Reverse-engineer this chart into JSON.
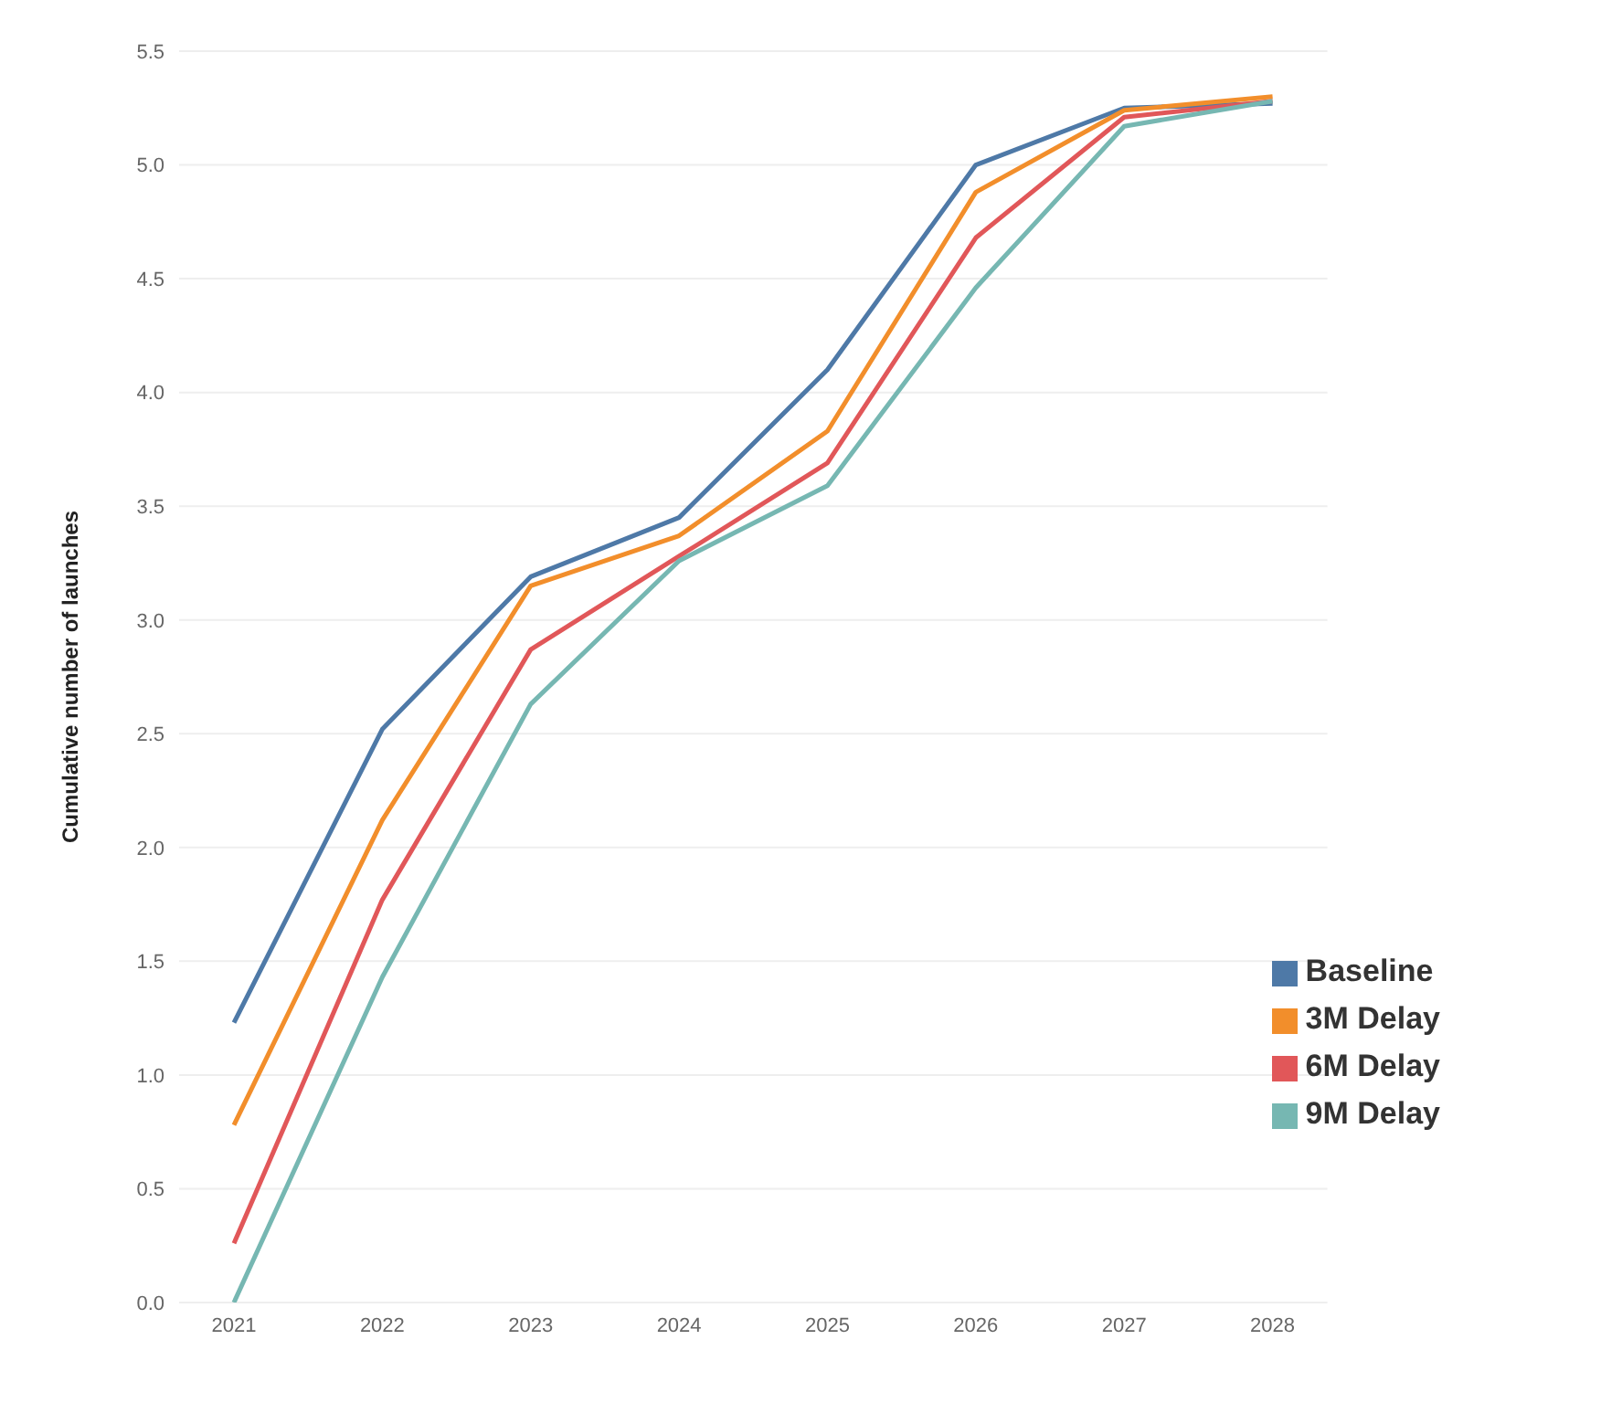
{
  "chart_data": {
    "type": "line",
    "ylabel": "Cumulative number of launches",
    "categories": [
      "2021",
      "2022",
      "2023",
      "2024",
      "2025",
      "2026",
      "2027",
      "2028"
    ],
    "series": [
      {
        "name": "Baseline",
        "color": "#4e79a7",
        "values": [
          1.23,
          2.52,
          3.19,
          3.45,
          4.1,
          5.0,
          5.25,
          5.27
        ]
      },
      {
        "name": "3M Delay",
        "color": "#f28e2b",
        "values": [
          0.78,
          2.12,
          3.15,
          3.37,
          3.83,
          4.88,
          5.24,
          5.3
        ]
      },
      {
        "name": "6M Delay",
        "color": "#e15759",
        "values": [
          0.26,
          1.77,
          2.87,
          3.28,
          3.69,
          4.68,
          5.21,
          5.28
        ]
      },
      {
        "name": "9M Delay",
        "color": "#76b7b2",
        "values": [
          0.0,
          1.43,
          2.63,
          3.26,
          3.59,
          4.46,
          5.17,
          5.28
        ]
      }
    ],
    "ylim": [
      0,
      5.5
    ],
    "yticks": [
      {
        "value": 0,
        "label": "0.0"
      },
      {
        "value": 0.5,
        "label": "0.5"
      },
      {
        "value": 1,
        "label": "1.0"
      },
      {
        "value": 1.5,
        "label": "1.5"
      },
      {
        "value": 2,
        "label": "2.0"
      },
      {
        "value": 2.5,
        "label": "2.5"
      },
      {
        "value": 3,
        "label": "3.0"
      },
      {
        "value": 3.5,
        "label": "3.5"
      },
      {
        "value": 4,
        "label": "4.0"
      },
      {
        "value": 4.5,
        "label": "4.5"
      },
      {
        "value": 5,
        "label": "5.0"
      },
      {
        "value": 5.5,
        "label": "5.5"
      }
    ],
    "grid": "y",
    "legend": "bottom right",
    "marker": "none",
    "line_style": "solid"
  }
}
